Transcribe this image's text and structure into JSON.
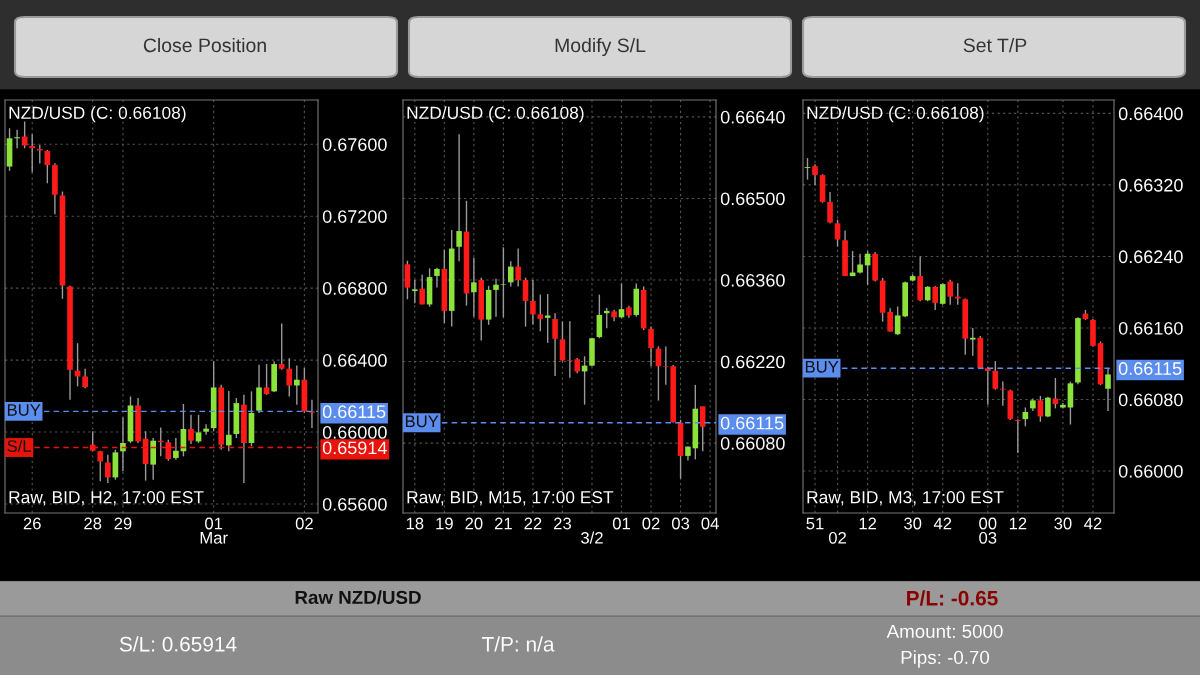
{
  "chart_data": [
    {
      "type": "candlestick",
      "title": "NZD/USD (C: 0.66108)",
      "subtitle": "Raw, BID, H2, 17:00 EST",
      "colors": [
        "#8be23a",
        "#8be23a",
        "#ff1a1a",
        "#ff1a1a",
        "#ff1a1a",
        "#ff1a1a",
        "#ff1a1a",
        "#ff1a1a",
        "#ff1a1a",
        "#ff1a1a",
        "#ff1a1a",
        "#ff1a1a",
        "#ff1a1a",
        "#ff1a1a",
        "#8be23a",
        "#8be23a",
        "#8be23a",
        "#ff1a1a",
        "#ff1a1a",
        "#8be23a",
        "#ff1a1a",
        "#ff1a1a",
        "#8be23a",
        "#8be23a",
        "#ff1a1a",
        "#8be23a",
        "#8be23a",
        "#8be23a",
        "#ff1a1a",
        "#8be23a",
        "#8be23a",
        "#ff1a1a",
        "#8be23a",
        "#8be23a",
        "#ff1a1a",
        "#8be23a",
        "#ff1a1a",
        "#ff1a1a",
        "#8be23a",
        "#ff1a1a",
        "#ff1a1a"
      ],
      "grid": true,
      "categories": [
        null,
        null,
        null,
        "26",
        null,
        null,
        null,
        null,
        null,
        null,
        null,
        "28",
        null,
        null,
        null,
        "29",
        null,
        null,
        null,
        null,
        null,
        null,
        null,
        null,
        null,
        null,
        null,
        "01\nMar",
        null,
        null,
        null,
        null,
        null,
        null,
        null,
        null,
        null,
        null,
        null,
        "02",
        null
      ],
      "ohlc": [
        [
          0.67476,
          0.67689,
          0.67452,
          0.67633
        ],
        [
          0.67633,
          0.6768,
          0.67578,
          0.67639
        ],
        [
          0.67643,
          0.67726,
          0.67578,
          0.67593
        ],
        [
          0.67591,
          0.67656,
          0.67444,
          0.67578
        ],
        [
          0.67574,
          0.67596,
          0.67493,
          0.67565
        ],
        [
          0.67563,
          0.67569,
          0.67383,
          0.67485
        ],
        [
          0.67485,
          0.67494,
          0.67211,
          0.67319
        ],
        [
          0.67315,
          0.67337,
          0.66741,
          0.66815
        ],
        [
          0.66809,
          0.66813,
          0.6618,
          0.66346
        ],
        [
          0.66341,
          0.66494,
          0.66254,
          0.66309
        ],
        [
          0.66309,
          0.66352,
          0.66244,
          0.6625
        ],
        [
          0.6593,
          0.66004,
          0.65893,
          0.65896
        ],
        [
          0.65893,
          0.65896,
          0.65726,
          0.65837
        ],
        [
          0.65831,
          0.65874,
          0.65717,
          0.65748
        ],
        [
          0.65748,
          0.65902,
          0.65735,
          0.65887
        ],
        [
          0.65893,
          0.66081,
          0.65782,
          0.65939
        ],
        [
          0.65948,
          0.66198,
          0.65939,
          0.66148
        ],
        [
          0.66148,
          0.66189,
          0.65939,
          0.65948
        ],
        [
          0.65963,
          0.66004,
          0.6573,
          0.65822
        ],
        [
          0.65819,
          0.65967,
          0.65735,
          0.65952
        ],
        [
          0.65952,
          0.66026,
          0.65865,
          0.65944
        ],
        [
          0.65943,
          0.65957,
          0.65841,
          0.6585
        ],
        [
          0.65856,
          0.65967,
          0.65846,
          0.65896
        ],
        [
          0.65893,
          0.66156,
          0.65865,
          0.66017
        ],
        [
          0.66017,
          0.66096,
          0.65933,
          0.65952
        ],
        [
          0.65948,
          0.66096,
          0.65939,
          0.65998
        ],
        [
          0.66002,
          0.66044,
          0.65985,
          0.66019
        ],
        [
          0.66022,
          0.66393,
          0.66004,
          0.66248
        ],
        [
          0.66248,
          0.66263,
          0.65902,
          0.6593
        ],
        [
          0.65926,
          0.66228,
          0.65893,
          0.65985
        ],
        [
          0.65989,
          0.66189,
          0.65967,
          0.66161
        ],
        [
          0.66152,
          0.66207,
          0.65717,
          0.65939
        ],
        [
          0.65939,
          0.66226,
          0.6592,
          0.66106
        ],
        [
          0.66119,
          0.66374,
          0.66106,
          0.66248
        ],
        [
          0.66248,
          0.66378,
          0.66207,
          0.66211
        ],
        [
          0.66226,
          0.66393,
          0.66222,
          0.66378
        ],
        [
          0.66378,
          0.66604,
          0.66346,
          0.66352
        ],
        [
          0.66352,
          0.66411,
          0.66198,
          0.66259
        ],
        [
          0.66259,
          0.6637,
          0.66152,
          0.66291
        ],
        [
          0.66291,
          0.66356,
          0.66106,
          0.66115
        ],
        [
          0.66115,
          0.6618,
          0.66022,
          0.66108
        ]
      ],
      "ylim": [
        0.6555,
        0.67846
      ],
      "yticks": [
        {
          "value": 0.656,
          "label": "0.65600"
        },
        {
          "value": 0.66,
          "label": "0.66000"
        },
        {
          "value": 0.664,
          "label": "0.66400"
        },
        {
          "value": 0.668,
          "label": "0.66800"
        },
        {
          "value": 0.672,
          "label": "0.67200"
        },
        {
          "value": 0.676,
          "label": "0.67600"
        },
        {
          "value": 0.66115,
          "label": "0.66115"
        },
        {
          "value": 0.65914,
          "label": "0.65914"
        }
      ],
      "ref_lines": [
        {
          "axis": "y",
          "value": 0.66115,
          "label": "BUY",
          "color": "#5b8def",
          "line_style": "dashed"
        },
        {
          "axis": "y",
          "value": 0.65914,
          "label": "S/L",
          "color": "#e8140c",
          "line_style": "dashed"
        }
      ]
    },
    {
      "type": "candlestick",
      "title": "NZD/USD (C: 0.66108)",
      "subtitle": "Raw, BID, M15, 17:00 EST",
      "colors": [
        "#ff1a1a",
        "#8be23a",
        "#ff1a1a",
        "#8be23a",
        "#8be23a",
        "#ff1a1a",
        "#8be23a",
        "#8be23a",
        "#ff1a1a",
        "#8be23a",
        "#ff1a1a",
        "#8be23a",
        "#8be23a",
        "#8be23a",
        "#8be23a",
        "#ff1a1a",
        "#ff1a1a",
        "#ff1a1a",
        "#ff1a1a",
        "#8be23a",
        "#ff1a1a",
        "#ff1a1a",
        "#ff1a1a",
        "#ff1a1a",
        "#8be23a",
        "#8be23a",
        "#8be23a",
        "#8be23a",
        "#ff1a1a",
        "#8be23a",
        "#ff1a1a",
        "#8be23a",
        "#ff1a1a",
        "#ff1a1a",
        "#ff1a1a",
        "#ff1a1a",
        "#ff1a1a",
        "#ff1a1a",
        "#8be23a",
        "#8be23a",
        "#ff1a1a",
        null
      ],
      "grid": true,
      "categories": [
        null,
        "18",
        null,
        null,
        null,
        "19",
        null,
        null,
        null,
        "20",
        null,
        null,
        null,
        "21",
        null,
        null,
        null,
        "22",
        null,
        null,
        null,
        "23",
        null,
        null,
        null,
        "\n3/2",
        null,
        null,
        null,
        "01",
        null,
        null,
        null,
        "02",
        null,
        null,
        null,
        "03",
        null,
        null,
        null,
        "04"
      ],
      "ohlc": [
        [
          0.66387,
          0.66393,
          0.66327,
          0.66347
        ],
        [
          0.66341,
          0.6636,
          0.6632,
          0.66344
        ],
        [
          0.66345,
          0.66369,
          0.66318,
          0.66318
        ],
        [
          0.66318,
          0.6638,
          0.66314,
          0.66365
        ],
        [
          0.66367,
          0.66381,
          0.66347,
          0.66379
        ],
        [
          0.66379,
          0.66412,
          0.66286,
          0.66307
        ],
        [
          0.66307,
          0.66446,
          0.6628,
          0.66414
        ],
        [
          0.66417,
          0.6661,
          0.66392,
          0.66444
        ],
        [
          0.66443,
          0.66496,
          0.66316,
          0.66337
        ],
        [
          0.66339,
          0.66398,
          0.66297,
          0.66356
        ],
        [
          0.6636,
          0.66364,
          0.66256,
          0.66292
        ],
        [
          0.66292,
          0.6635,
          0.66283,
          0.66343
        ],
        [
          0.66343,
          0.66362,
          0.66297,
          0.66352
        ],
        [
          0.66352,
          0.66416,
          0.66296,
          0.66353
        ],
        [
          0.66356,
          0.66392,
          0.66349,
          0.66383
        ],
        [
          0.66383,
          0.66414,
          0.66349,
          0.6636
        ],
        [
          0.6636,
          0.66364,
          0.6628,
          0.66324
        ],
        [
          0.66324,
          0.6636,
          0.66283,
          0.66301
        ],
        [
          0.66301,
          0.66335,
          0.66272,
          0.66293
        ],
        [
          0.66295,
          0.66336,
          0.66252,
          0.66299
        ],
        [
          0.66293,
          0.66303,
          0.66195,
          0.66259
        ],
        [
          0.66258,
          0.66289,
          0.6622,
          0.66222
        ],
        [
          0.66222,
          0.66289,
          0.66192,
          0.66221
        ],
        [
          0.66224,
          0.66226,
          0.662,
          0.66203
        ],
        [
          0.66203,
          0.66229,
          0.66146,
          0.66213
        ],
        [
          0.66213,
          0.66261,
          0.66212,
          0.6626
        ],
        [
          0.66262,
          0.66335,
          0.6626,
          0.663
        ],
        [
          0.66303,
          0.66312,
          0.66277,
          0.66307
        ],
        [
          0.66306,
          0.66309,
          0.66289,
          0.66296
        ],
        [
          0.66296,
          0.66354,
          0.66294,
          0.6631
        ],
        [
          0.66313,
          0.66316,
          0.66295,
          0.66299
        ],
        [
          0.663,
          0.66354,
          0.66297,
          0.66345
        ],
        [
          0.66343,
          0.66349,
          0.66274,
          0.66277
        ],
        [
          0.66276,
          0.6628,
          0.66212,
          0.66243
        ],
        [
          0.66242,
          0.66246,
          0.66153,
          0.66212
        ],
        [
          0.66212,
          0.66246,
          0.6618,
          0.66211
        ],
        [
          0.66212,
          0.66214,
          0.66115,
          0.66116
        ],
        [
          0.66115,
          0.6612,
          0.66019,
          0.66058
        ],
        [
          0.66058,
          0.66074,
          0.6605,
          0.66074
        ],
        [
          0.66071,
          0.6618,
          0.66052,
          0.66139
        ],
        [
          0.66143,
          0.66143,
          0.66066,
          0.66108
        ],
        null
      ],
      "ylim": [
        0.6596,
        0.66669
      ],
      "yticks": [
        {
          "value": 0.6608,
          "label": "0.66080"
        },
        {
          "value": 0.6622,
          "label": "0.66220"
        },
        {
          "value": 0.6636,
          "label": "0.66360"
        },
        {
          "value": 0.665,
          "label": "0.66500"
        },
        {
          "value": 0.6664,
          "label": "0.66640"
        },
        {
          "value": 0.66115,
          "label": "0.66115"
        }
      ],
      "ref_lines": [
        {
          "axis": "y",
          "value": 0.66115,
          "label": "BUY",
          "color": "#5b8def",
          "line_style": "dashed"
        }
      ]
    },
    {
      "type": "candlestick",
      "title": "NZD/USD (C: 0.66108)",
      "subtitle": "Raw, BID, M3, 17:00 EST",
      "colors": [
        "#8be23a",
        "#ff1a1a",
        "#ff1a1a",
        "#ff1a1a",
        "#ff1a1a",
        "#ff1a1a",
        "#8be23a",
        "#8be23a",
        "#8be23a",
        "#ff1a1a",
        "#ff1a1a",
        "#ff1a1a",
        "#8be23a",
        "#8be23a",
        "#8be23a",
        "#ff1a1a",
        "#8be23a",
        "#ff1a1a",
        "#8be23a",
        "#ff1a1a",
        "#ff1a1a",
        "#ff1a1a",
        "#8be23a",
        "#ff1a1a",
        "#ff1a1a",
        "#ff1a1a",
        "#ff1a1a",
        "#ff1a1a",
        "#ff1a1a",
        "#8be23a",
        "#8be23a",
        "#ff1a1a",
        "#8be23a",
        "#ff1a1a",
        "#8be23a",
        "#8be23a",
        "#8be23a",
        "#ff1a1a",
        "#ff1a1a",
        "#ff1a1a",
        "#8be23a"
      ],
      "grid": true,
      "categories": [
        null,
        "51",
        null,
        null,
        "\n02",
        null,
        null,
        null,
        "12",
        null,
        null,
        null,
        null,
        null,
        "30",
        null,
        null,
        null,
        "42",
        null,
        null,
        null,
        null,
        null,
        "00\n03",
        null,
        null,
        null,
        "12",
        null,
        null,
        null,
        null,
        null,
        "30",
        null,
        null,
        null,
        "42",
        null,
        null
      ],
      "ohlc": [
        [
          0.66339,
          0.6635,
          0.66326,
          0.6634
        ],
        [
          0.66341,
          0.66343,
          0.6632,
          0.66331
        ],
        [
          0.66331,
          0.66332,
          0.663,
          0.66301
        ],
        [
          0.66301,
          0.66312,
          0.66277,
          0.66278
        ],
        [
          0.66277,
          0.66281,
          0.66251,
          0.66259
        ],
        [
          0.66258,
          0.66269,
          0.66218,
          0.66218
        ],
        [
          0.66218,
          0.66246,
          0.66218,
          0.66222
        ],
        [
          0.66222,
          0.66243,
          0.66221,
          0.66231
        ],
        [
          0.6623,
          0.66246,
          0.66208,
          0.66243
        ],
        [
          0.66243,
          0.66245,
          0.66212,
          0.66213
        ],
        [
          0.66213,
          0.66216,
          0.66167,
          0.66177
        ],
        [
          0.66178,
          0.66182,
          0.66156,
          0.66156
        ],
        [
          0.66153,
          0.66184,
          0.66152,
          0.66174
        ],
        [
          0.66173,
          0.66212,
          0.66172,
          0.66211
        ],
        [
          0.66213,
          0.6622,
          0.66212,
          0.66218
        ],
        [
          0.66218,
          0.6624,
          0.6619,
          0.66191
        ],
        [
          0.66191,
          0.66207,
          0.6619,
          0.66206
        ],
        [
          0.66206,
          0.66207,
          0.6618,
          0.66188
        ],
        [
          0.66187,
          0.6621,
          0.66186,
          0.66209
        ],
        [
          0.66212,
          0.66214,
          0.66186,
          0.66195
        ],
        [
          0.66195,
          0.6621,
          0.66186,
          0.66193
        ],
        [
          0.66192,
          0.66193,
          0.6613,
          0.66148
        ],
        [
          0.66147,
          0.6616,
          0.66129,
          0.66149
        ],
        [
          0.66149,
          0.66151,
          0.66115,
          0.66115
        ],
        [
          0.66115,
          0.66116,
          0.66074,
          0.66112
        ],
        [
          0.66112,
          0.66123,
          0.66091,
          0.66092
        ],
        [
          0.66092,
          0.661,
          0.66073,
          0.66091
        ],
        [
          0.6609,
          0.66091,
          0.66057,
          0.66058
        ],
        [
          0.66057,
          0.66058,
          0.6602,
          0.66056
        ],
        [
          0.66058,
          0.66071,
          0.6605,
          0.66066
        ],
        [
          0.6607,
          0.66081,
          0.66067,
          0.66079
        ],
        [
          0.66079,
          0.66084,
          0.66055,
          0.66061
        ],
        [
          0.66061,
          0.66083,
          0.6606,
          0.66082
        ],
        [
          0.66081,
          0.66104,
          0.6607,
          0.66075
        ],
        [
          0.66071,
          0.66076,
          0.6607,
          0.66074
        ],
        [
          0.66071,
          0.661,
          0.66052,
          0.66098
        ],
        [
          0.66099,
          0.66172,
          0.66097,
          0.66171
        ],
        [
          0.66176,
          0.6618,
          0.66169,
          0.6617
        ],
        [
          0.66169,
          0.6617,
          0.66139,
          0.6614
        ],
        [
          0.66143,
          0.66145,
          0.66096,
          0.66097
        ],
        [
          0.66092,
          0.66115,
          0.66067,
          0.66108
        ]
      ],
      "ylim": [
        0.65953,
        0.66415
      ],
      "yticks": [
        {
          "value": 0.66,
          "label": "0.66000"
        },
        {
          "value": 0.6608,
          "label": "0.66080"
        },
        {
          "value": 0.6616,
          "label": "0.66160"
        },
        {
          "value": 0.6624,
          "label": "0.66240"
        },
        {
          "value": 0.6632,
          "label": "0.66320"
        },
        {
          "value": 0.664,
          "label": "0.66400"
        },
        {
          "value": 0.66115,
          "label": "0.66115"
        }
      ],
      "ref_lines": [
        {
          "axis": "y",
          "value": 0.66115,
          "label": "BUY",
          "color": "#5b8def",
          "line_style": "dashed"
        }
      ]
    },
    {
      "type": "other",
      "annotations": [
        "Close Position",
        "Modify S/L",
        "Set T/P",
        "Raw NZD/USD",
        "P/L: -0.65",
        "S/L: 0.65914",
        "T/P: n/a",
        "Amount: 5000",
        "Pips: -0.70"
      ]
    }
  ]
}
